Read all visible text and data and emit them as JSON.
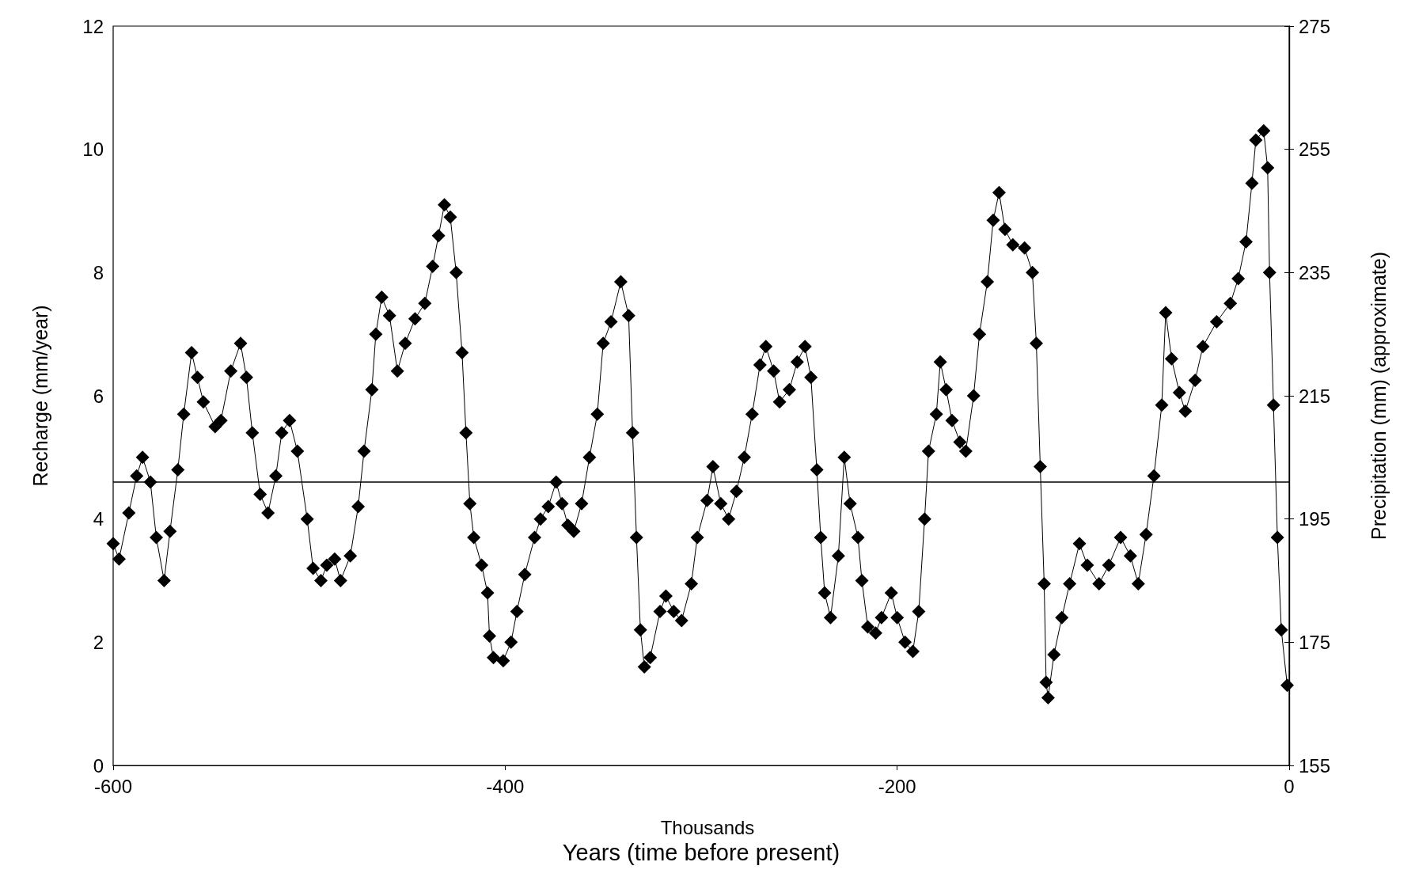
{
  "chart_data": {
    "type": "line",
    "xlabel": "Years (time before present)",
    "ylabel": "Recharge (mm/year)",
    "y2label": "Precipitation (mm) (approximate)",
    "annotations": [
      "Thousands"
    ],
    "xlim": [
      -600,
      0
    ],
    "xticks": [
      -600,
      -400,
      -200,
      0
    ],
    "ylim": [
      0,
      12
    ],
    "yticks": [
      0,
      2,
      4,
      6,
      8,
      10,
      12
    ],
    "y2lim": [
      155,
      275
    ],
    "y2ticks": [
      155,
      175,
      195,
      215,
      235,
      255,
      275
    ],
    "grid": false,
    "marker": "diamond",
    "line_style": "solid",
    "ref_lines": [
      {
        "axis": "y",
        "value": 4.6,
        "color": "#000000"
      }
    ],
    "series": [
      {
        "color": "#000000",
        "x": [
          -600,
          -597,
          -592,
          -588,
          -585,
          -581,
          -578,
          -574,
          -571,
          -567,
          -564,
          -560,
          -557,
          -554,
          -548,
          -545,
          -540,
          -535,
          -532,
          -529,
          -525,
          -521,
          -517,
          -514,
          -510,
          -506,
          -501,
          -498,
          -494,
          -491,
          -487,
          -484,
          -479,
          -475,
          -472,
          -468,
          -466,
          -463,
          -459,
          -455,
          -451,
          -446,
          -441,
          -437,
          -434,
          -431,
          -428,
          -425,
          -422,
          -420,
          -418,
          -416,
          -412,
          -409,
          -408,
          -406,
          -401,
          -397,
          -394,
          -390,
          -385,
          -382,
          -378,
          -374,
          -371,
          -368,
          -365,
          -361,
          -357,
          -353,
          -350,
          -346,
          -341,
          -337,
          -335,
          -333,
          -331,
          -329,
          -326,
          -321,
          -318,
          -314,
          -310,
          -305,
          -302,
          -297,
          -294,
          -290,
          -286,
          -282,
          -278,
          -274,
          -270,
          -267,
          -263,
          -260,
          -255,
          -251,
          -247,
          -244,
          -241,
          -239,
          -237,
          -234,
          -230,
          -227,
          -224,
          -220,
          -218,
          -215,
          -211,
          -208,
          -203,
          -200,
          -196,
          -192,
          -189,
          -186,
          -184,
          -180,
          -178,
          -175,
          -172,
          -168,
          -165,
          -161,
          -158,
          -154,
          -151,
          -148,
          -145,
          -141,
          -135,
          -131,
          -129,
          -127,
          -125,
          -124,
          -123,
          -120,
          -116,
          -112,
          -107,
          -103,
          -97,
          -92,
          -86,
          -81,
          -77,
          -73,
          -69,
          -65,
          -63,
          -60,
          -56,
          -53,
          -48,
          -44,
          -37,
          -30,
          -26,
          -22,
          -19,
          -17,
          -13,
          -11,
          -10,
          -8,
          -6,
          -4,
          -1
        ],
        "values": [
          3.6,
          3.35,
          4.1,
          4.7,
          5.0,
          4.6,
          3.7,
          3.0,
          3.8,
          4.8,
          5.7,
          6.7,
          6.3,
          5.9,
          5.5,
          5.6,
          6.4,
          6.85,
          6.3,
          5.4,
          4.4,
          4.1,
          4.7,
          5.4,
          5.6,
          5.1,
          4.0,
          3.2,
          3.0,
          3.25,
          3.35,
          3.0,
          3.4,
          4.2,
          5.1,
          6.1,
          7.0,
          7.6,
          7.3,
          6.4,
          6.85,
          7.25,
          7.5,
          8.1,
          8.6,
          9.1,
          8.9,
          8.0,
          6.7,
          5.4,
          4.25,
          3.7,
          3.25,
          2.8,
          2.1,
          1.75,
          1.7,
          2.0,
          2.5,
          3.1,
          3.7,
          4.0,
          4.2,
          4.6,
          4.25,
          3.9,
          3.8,
          4.25,
          5.0,
          5.7,
          6.85,
          7.2,
          7.85,
          7.3,
          5.4,
          3.7,
          2.2,
          1.6,
          1.75,
          2.5,
          2.75,
          2.5,
          2.35,
          2.95,
          3.7,
          4.3,
          4.85,
          4.25,
          4.0,
          4.45,
          5.0,
          5.7,
          6.5,
          6.8,
          6.4,
          5.9,
          6.1,
          6.55,
          6.8,
          6.3,
          4.8,
          3.7,
          2.8,
          2.4,
          3.4,
          5.0,
          4.25,
          3.7,
          3.0,
          2.25,
          2.15,
          2.4,
          2.8,
          2.4,
          2.0,
          1.85,
          2.5,
          4.0,
          5.1,
          5.7,
          6.55,
          6.1,
          5.6,
          5.25,
          5.1,
          6.0,
          7.0,
          7.85,
          8.85,
          9.3,
          8.7,
          8.45,
          8.4,
          8.0,
          6.85,
          4.85,
          2.95,
          1.35,
          1.1,
          1.8,
          2.4,
          2.95,
          3.6,
          3.25,
          2.95,
          3.25,
          3.7,
          3.4,
          2.95,
          3.75,
          4.7,
          5.85,
          7.35,
          6.6,
          6.05,
          5.75,
          6.25,
          6.8,
          7.2,
          7.5,
          7.9,
          8.5,
          9.45,
          10.15,
          10.3,
          9.7,
          8.0,
          5.85,
          3.7,
          2.2,
          1.3
        ]
      }
    ]
  }
}
